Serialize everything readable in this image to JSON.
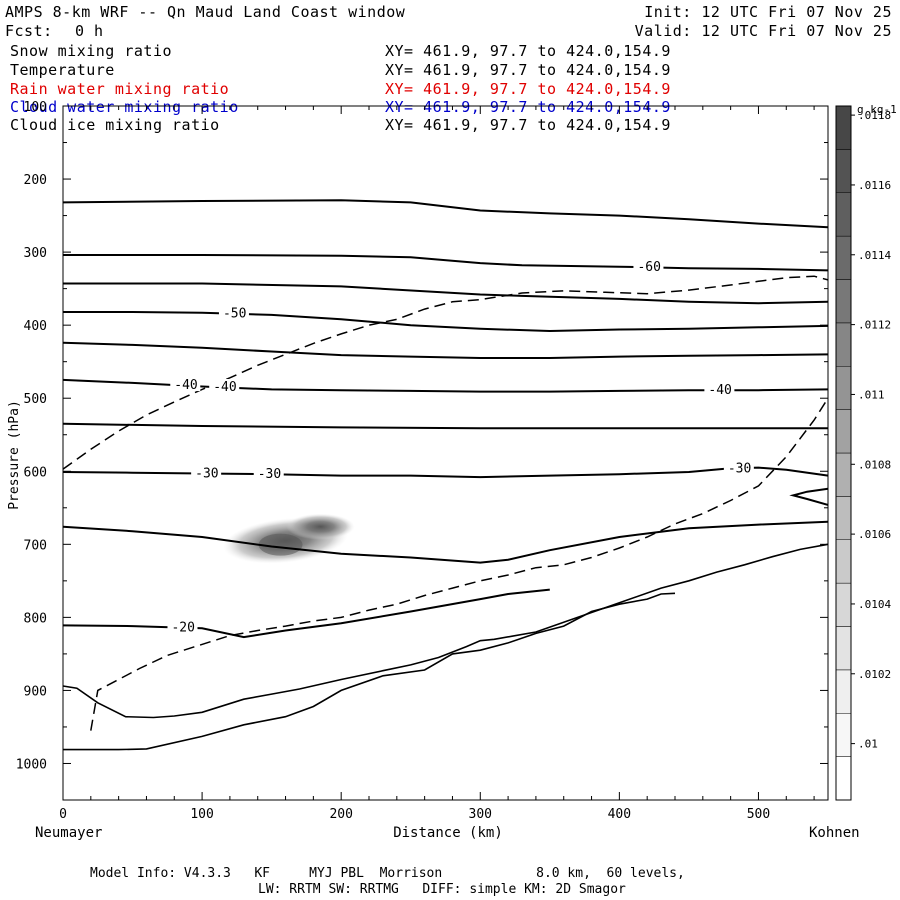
{
  "header": {
    "title": "AMPS 8-km WRF -- Qn Maud Land Coast window",
    "fcst_label": "Fcst:",
    "fcst_value": "0 h",
    "init": "Init: 12 UTC Fri 07 Nov 25",
    "valid": "Valid: 12 UTC Fri 07 Nov 25"
  },
  "legend": [
    {
      "name": "Snow mixing ratio",
      "xy": "XY= 461.9, 97.7 to 424.0,154.9",
      "color": "#000000"
    },
    {
      "name": "Temperature",
      "xy": "XY= 461.9, 97.7 to 424.0,154.9",
      "color": "#000000"
    },
    {
      "name": "Rain water mixing ratio",
      "xy": "XY= 461.9, 97.7 to 424.0,154.9",
      "color": "#e00000"
    },
    {
      "name": "Cloud water mixing ratio",
      "xy": "XY= 461.9, 97.7 to 424.0,154.9",
      "color": "#0000cc"
    },
    {
      "name": "Cloud ice mixing ratio",
      "xy": "XY= 461.9, 97.7 to 424.0,154.9",
      "color": "#000000"
    }
  ],
  "footer": {
    "line1": "Model Info: V4.3.3   KF     MYJ PBL  Morrison            8.0 km,  60 levels,",
    "line2": "LW: RRTM SW: RRTMG   DIFF: simple KM: 2D Smagor"
  },
  "chart_data": {
    "type": "contour_cross_section",
    "title": "AMPS 8-km WRF -- Qn Maud Land Coast window",
    "xlabel": "Distance (km)",
    "ylabel": "Pressure (hPa)",
    "x_left_label": "Neumayer",
    "x_right_label": "Kohnen",
    "xlim": [
      0,
      550
    ],
    "ylim": [
      1050,
      100
    ],
    "x_ticks": [
      0,
      100,
      200,
      300,
      400,
      500
    ],
    "y_ticks": [
      100,
      200,
      300,
      400,
      500,
      600,
      700,
      800,
      900,
      1000
    ],
    "colorbar": {
      "unit": "g kg-1",
      "ticks": [
        ".01",
        ".0102",
        ".0104",
        ".0106",
        ".0108",
        ".011",
        ".0112",
        ".0114",
        ".0116",
        ".0118"
      ],
      "level_greys": [
        "#ffffff",
        "#f7f7f7",
        "#efefef",
        "#e3e3e3",
        "#d7d7d7",
        "#cacaca",
        "#bdbdbd",
        "#b0b0b0",
        "#a2a2a2",
        "#949494",
        "#868686",
        "#787878",
        "#6b6b6b",
        "#5f5f5f",
        "#535353",
        "#474747"
      ]
    },
    "temperature_contours": [
      {
        "points": [
          [
            0,
            232
          ],
          [
            100,
            230
          ],
          [
            200,
            229
          ],
          [
            250,
            232
          ],
          [
            300,
            243
          ],
          [
            350,
            247
          ],
          [
            400,
            250
          ],
          [
            450,
            255
          ],
          [
            500,
            261
          ],
          [
            550,
            266
          ]
        ]
      },
      {
        "points": [
          [
            0,
            304
          ],
          [
            100,
            304
          ],
          [
            200,
            305
          ],
          [
            250,
            307
          ],
          [
            300,
            315
          ],
          [
            330,
            318
          ],
          [
            400,
            320
          ],
          [
            450,
            322
          ],
          [
            500,
            323
          ],
          [
            550,
            325
          ]
        ],
        "labels": [
          {
            "text": "-60",
            "x": 413
          }
        ]
      },
      {
        "points": [
          [
            0,
            343
          ],
          [
            100,
            343
          ],
          [
            200,
            347
          ],
          [
            300,
            358
          ],
          [
            330,
            360
          ],
          [
            400,
            364
          ],
          [
            450,
            368
          ],
          [
            500,
            370
          ],
          [
            550,
            368
          ]
        ]
      },
      {
        "points": [
          [
            0,
            382
          ],
          [
            50,
            382
          ],
          [
            100,
            383
          ],
          [
            150,
            386
          ],
          [
            200,
            392
          ],
          [
            250,
            400
          ],
          [
            300,
            405
          ],
          [
            350,
            408
          ],
          [
            400,
            406
          ],
          [
            450,
            405
          ],
          [
            500,
            403
          ],
          [
            550,
            401
          ]
        ],
        "labels": [
          {
            "text": "-50",
            "x": 115
          }
        ]
      },
      {
        "points": [
          [
            0,
            424
          ],
          [
            50,
            427
          ],
          [
            100,
            431
          ],
          [
            150,
            436
          ],
          [
            200,
            441
          ],
          [
            250,
            443
          ],
          [
            300,
            445
          ],
          [
            350,
            445
          ],
          [
            400,
            443
          ],
          [
            450,
            442
          ],
          [
            500,
            441
          ],
          [
            550,
            440
          ]
        ]
      },
      {
        "points": [
          [
            0,
            475
          ],
          [
            50,
            479
          ],
          [
            100,
            484
          ],
          [
            150,
            488
          ],
          [
            200,
            489
          ],
          [
            250,
            490
          ],
          [
            300,
            491
          ],
          [
            350,
            491
          ],
          [
            400,
            490
          ],
          [
            450,
            489
          ],
          [
            500,
            489
          ],
          [
            550,
            488
          ]
        ],
        "labels": [
          {
            "text": "-40",
            "x": 80
          },
          {
            "text": "-40",
            "x": 108
          },
          {
            "text": "-40",
            "x": 464
          }
        ]
      },
      {
        "points": [
          [
            0,
            535
          ],
          [
            100,
            538
          ],
          [
            200,
            540
          ],
          [
            300,
            541
          ],
          [
            400,
            541
          ],
          [
            500,
            541
          ],
          [
            550,
            541
          ]
        ]
      },
      {
        "points": [
          [
            0,
            601
          ],
          [
            50,
            602
          ],
          [
            100,
            603
          ],
          [
            150,
            604
          ],
          [
            200,
            606
          ],
          [
            250,
            606
          ],
          [
            300,
            608
          ],
          [
            350,
            606
          ],
          [
            400,
            604
          ],
          [
            450,
            601
          ],
          [
            480,
            596
          ],
          [
            500,
            595
          ],
          [
            520,
            598
          ],
          [
            550,
            606
          ]
        ],
        "labels": [
          {
            "text": "-30",
            "x": 95
          },
          {
            "text": "-30",
            "x": 140
          },
          {
            "text": "-30",
            "x": 478
          }
        ]
      },
      {
        "points": [
          [
            550,
            624
          ],
          [
            535,
            628
          ],
          [
            525,
            633
          ],
          [
            535,
            638
          ],
          [
            550,
            646
          ]
        ]
      },
      {
        "points": [
          [
            0,
            676
          ],
          [
            50,
            682
          ],
          [
            100,
            690
          ],
          [
            150,
            703
          ],
          [
            200,
            713
          ],
          [
            250,
            718
          ],
          [
            300,
            725
          ],
          [
            320,
            721
          ],
          [
            350,
            708
          ],
          [
            400,
            690
          ],
          [
            450,
            678
          ],
          [
            500,
            673
          ],
          [
            550,
            669
          ]
        ]
      },
      {
        "points": [
          [
            0,
            811
          ],
          [
            50,
            812
          ],
          [
            100,
            815
          ],
          [
            130,
            827
          ],
          [
            160,
            818
          ],
          [
            200,
            808
          ],
          [
            250,
            792
          ],
          [
            300,
            775
          ],
          [
            320,
            768
          ],
          [
            350,
            762
          ]
        ],
        "labels": [
          {
            "text": "-20",
            "x": 78
          }
        ]
      }
    ],
    "terrain_lines": [
      {
        "points": [
          [
            0,
            894
          ],
          [
            10,
            897
          ],
          [
            25,
            917
          ],
          [
            45,
            936
          ],
          [
            65,
            937
          ],
          [
            80,
            935
          ],
          [
            100,
            930
          ],
          [
            130,
            912
          ],
          [
            150,
            905
          ],
          [
            170,
            898
          ],
          [
            200,
            885
          ],
          [
            230,
            873
          ],
          [
            250,
            865
          ],
          [
            270,
            855
          ],
          [
            290,
            840
          ],
          [
            300,
            832
          ],
          [
            310,
            830
          ],
          [
            340,
            820
          ],
          [
            370,
            800
          ],
          [
            400,
            780
          ],
          [
            430,
            760
          ],
          [
            450,
            750
          ],
          [
            470,
            738
          ],
          [
            490,
            728
          ],
          [
            510,
            717
          ],
          [
            530,
            707
          ],
          [
            550,
            700
          ]
        ]
      },
      {
        "points": [
          [
            0,
            981
          ],
          [
            40,
            981
          ],
          [
            60,
            980
          ],
          [
            100,
            963
          ],
          [
            130,
            947
          ],
          [
            160,
            936
          ],
          [
            180,
            922
          ],
          [
            200,
            900
          ],
          [
            230,
            880
          ],
          [
            260,
            872
          ],
          [
            280,
            850
          ],
          [
            300,
            845
          ],
          [
            320,
            835
          ],
          [
            340,
            822
          ],
          [
            360,
            812
          ],
          [
            380,
            792
          ],
          [
            400,
            782
          ],
          [
            420,
            775
          ],
          [
            430,
            768
          ],
          [
            440,
            767
          ]
        ]
      }
    ],
    "snow_dashed_contours": [
      {
        "points": [
          [
            0,
            597
          ],
          [
            20,
            570
          ],
          [
            40,
            545
          ],
          [
            60,
            523
          ],
          [
            80,
            505
          ],
          [
            100,
            488
          ],
          [
            120,
            472
          ],
          [
            140,
            455
          ],
          [
            160,
            440
          ],
          [
            180,
            425
          ],
          [
            200,
            412
          ],
          [
            220,
            400
          ],
          [
            240,
            392
          ],
          [
            260,
            378
          ],
          [
            280,
            368
          ],
          [
            300,
            365
          ],
          [
            330,
            356
          ],
          [
            360,
            353
          ],
          [
            390,
            355
          ],
          [
            420,
            357
          ],
          [
            450,
            352
          ],
          [
            480,
            345
          ],
          [
            500,
            340
          ],
          [
            520,
            335
          ],
          [
            540,
            333
          ],
          [
            550,
            338
          ]
        ]
      },
      {
        "points": [
          [
            20,
            955
          ],
          [
            25,
            900
          ],
          [
            40,
            885
          ],
          [
            55,
            870
          ],
          [
            75,
            852
          ],
          [
            95,
            840
          ],
          [
            120,
            825
          ],
          [
            140,
            818
          ],
          [
            160,
            812
          ],
          [
            180,
            805
          ],
          [
            200,
            800
          ],
          [
            220,
            790
          ],
          [
            240,
            782
          ],
          [
            260,
            770
          ],
          [
            280,
            760
          ],
          [
            300,
            750
          ],
          [
            320,
            742
          ],
          [
            340,
            732
          ],
          [
            360,
            728
          ],
          [
            380,
            718
          ],
          [
            400,
            705
          ],
          [
            420,
            690
          ],
          [
            440,
            672
          ],
          [
            460,
            658
          ],
          [
            480,
            640
          ],
          [
            500,
            620
          ],
          [
            520,
            580
          ],
          [
            540,
            530
          ],
          [
            550,
            500
          ]
        ]
      }
    ],
    "cloud_ice_shading": {
      "x_range": [
        120,
        210
      ],
      "p_range": [
        660,
        750
      ],
      "peak": [
        160,
        695
      ],
      "max_value": ".0118"
    }
  }
}
